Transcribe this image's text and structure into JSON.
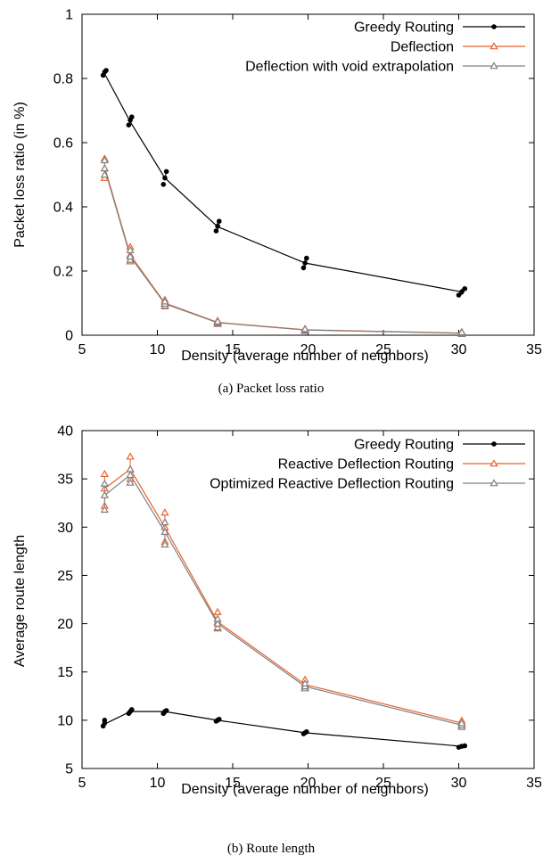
{
  "chart_data": [
    {
      "type": "line",
      "caption": "(a) Packet loss ratio",
      "xlabel": "Density (average number of neighbors)",
      "ylabel": "Packet loss ratio (in %)",
      "xlim": [
        5,
        35
      ],
      "ylim": [
        0,
        1
      ],
      "xticks": [
        "5",
        "10",
        "15",
        "20",
        "25",
        "30",
        "35"
      ],
      "yticks": [
        "0",
        "0.2",
        "0.4",
        "0.6",
        "0.8",
        "1"
      ],
      "legend_position": "top-right",
      "series": [
        {
          "name": "Greedy Routing",
          "color": "#000000",
          "marker": "circle",
          "x": [
            6.5,
            8.2,
            10.5,
            14.0,
            19.8,
            30.2
          ],
          "y": [
            0.815,
            0.665,
            0.49,
            0.338,
            0.225,
            0.135
          ],
          "samples": [
            [
              6.4,
              0.81
            ],
            [
              6.5,
              0.82
            ],
            [
              6.6,
              0.825
            ],
            [
              8.1,
              0.655
            ],
            [
              8.2,
              0.67
            ],
            [
              8.3,
              0.68
            ],
            [
              10.4,
              0.47
            ],
            [
              10.5,
              0.49
            ],
            [
              10.6,
              0.51
            ],
            [
              13.9,
              0.325
            ],
            [
              14.0,
              0.34
            ],
            [
              14.1,
              0.355
            ],
            [
              19.7,
              0.21
            ],
            [
              19.8,
              0.225
            ],
            [
              19.9,
              0.24
            ],
            [
              30.0,
              0.125
            ],
            [
              30.2,
              0.135
            ],
            [
              30.4,
              0.145
            ]
          ]
        },
        {
          "name": "Deflection",
          "color": "#e8622a",
          "marker": "triangle",
          "x": [
            6.5,
            8.2,
            10.5,
            14.0,
            19.8,
            30.2
          ],
          "y": [
            0.525,
            0.25,
            0.1,
            0.04,
            0.017,
            0.007
          ],
          "samples": [
            [
              6.5,
              0.49
            ],
            [
              6.5,
              0.52
            ],
            [
              6.5,
              0.55
            ],
            [
              8.2,
              0.23
            ],
            [
              8.2,
              0.25
            ],
            [
              8.2,
              0.275
            ],
            [
              10.5,
              0.09
            ],
            [
              10.5,
              0.1
            ],
            [
              10.5,
              0.11
            ],
            [
              14.0,
              0.035
            ],
            [
              14.0,
              0.04
            ],
            [
              14.0,
              0.045
            ],
            [
              19.8,
              0.013
            ],
            [
              19.8,
              0.017
            ],
            [
              19.8,
              0.02
            ],
            [
              30.2,
              0.004
            ],
            [
              30.2,
              0.007
            ],
            [
              30.2,
              0.01
            ]
          ]
        },
        {
          "name": "Deflection with void extrapolation",
          "color": "#808080",
          "marker": "triangle",
          "x": [
            6.5,
            8.2,
            10.5,
            14.0,
            19.8,
            30.2
          ],
          "y": [
            0.52,
            0.245,
            0.098,
            0.039,
            0.016,
            0.006
          ],
          "samples": [
            [
              6.5,
              0.5
            ],
            [
              6.5,
              0.52
            ],
            [
              6.5,
              0.545
            ],
            [
              8.2,
              0.235
            ],
            [
              8.2,
              0.245
            ],
            [
              8.2,
              0.265
            ],
            [
              10.5,
              0.092
            ],
            [
              10.5,
              0.098
            ],
            [
              10.5,
              0.105
            ],
            [
              14.0,
              0.036
            ],
            [
              14.0,
              0.039
            ],
            [
              14.0,
              0.043
            ],
            [
              19.8,
              0.014
            ],
            [
              19.8,
              0.016
            ],
            [
              19.8,
              0.019
            ],
            [
              30.2,
              0.004
            ],
            [
              30.2,
              0.006
            ],
            [
              30.2,
              0.009
            ]
          ]
        }
      ]
    },
    {
      "type": "line",
      "caption": "(b) Route length",
      "xlabel": "Density (average number of neighbors)",
      "ylabel": "Average route length",
      "xlim": [
        5,
        35
      ],
      "ylim": [
        5,
        40
      ],
      "xticks": [
        "5",
        "10",
        "15",
        "20",
        "25",
        "30",
        "35"
      ],
      "yticks": [
        "5",
        "10",
        "15",
        "20",
        "25",
        "30",
        "35",
        "40"
      ],
      "legend_position": "top-right",
      "series": [
        {
          "name": "Greedy Routing",
          "color": "#000000",
          "marker": "circle",
          "x": [
            6.5,
            8.2,
            10.5,
            14.0,
            19.8,
            30.2
          ],
          "y": [
            9.6,
            10.9,
            10.9,
            10.0,
            8.7,
            7.3
          ],
          "samples": [
            [
              6.4,
              9.4
            ],
            [
              6.5,
              9.7
            ],
            [
              6.5,
              10.0
            ],
            [
              8.1,
              10.7
            ],
            [
              8.2,
              10.9
            ],
            [
              8.3,
              11.1
            ],
            [
              10.4,
              10.7
            ],
            [
              10.5,
              10.9
            ],
            [
              10.6,
              11.0
            ],
            [
              13.9,
              9.9
            ],
            [
              14.0,
              10.0
            ],
            [
              14.1,
              10.1
            ],
            [
              19.7,
              8.6
            ],
            [
              19.8,
              8.7
            ],
            [
              19.9,
              8.8
            ],
            [
              30.0,
              7.2
            ],
            [
              30.2,
              7.3
            ],
            [
              30.4,
              7.35
            ]
          ]
        },
        {
          "name": "Reactive Deflection Routing",
          "color": "#e8622a",
          "marker": "triangle",
          "x": [
            6.5,
            8.2,
            10.5,
            14.0,
            19.8,
            30.2
          ],
          "y": [
            34.0,
            36.0,
            30.0,
            20.2,
            13.7,
            9.7
          ],
          "samples": [
            [
              6.5,
              32.2
            ],
            [
              6.5,
              34.0
            ],
            [
              6.5,
              35.5
            ],
            [
              8.2,
              35.0
            ],
            [
              8.2,
              36.0
            ],
            [
              8.2,
              37.3
            ],
            [
              10.5,
              28.5
            ],
            [
              10.5,
              30.0
            ],
            [
              10.5,
              31.5
            ],
            [
              14.0,
              19.5
            ],
            [
              14.0,
              20.2
            ],
            [
              14.0,
              21.2
            ],
            [
              19.8,
              13.4
            ],
            [
              19.8,
              13.7
            ],
            [
              19.8,
              14.2
            ],
            [
              30.2,
              9.5
            ],
            [
              30.2,
              9.7
            ],
            [
              30.2,
              9.95
            ]
          ]
        },
        {
          "name": "Optimized Reactive Deflection Routing",
          "color": "#808080",
          "marker": "triangle",
          "x": [
            6.5,
            8.2,
            10.5,
            14.0,
            19.8,
            30.2
          ],
          "y": [
            33.3,
            35.4,
            29.5,
            20.0,
            13.5,
            9.5
          ],
          "samples": [
            [
              6.5,
              31.8
            ],
            [
              6.5,
              33.3
            ],
            [
              6.5,
              34.5
            ],
            [
              8.2,
              34.6
            ],
            [
              8.2,
              35.4
            ],
            [
              8.2,
              36.0
            ],
            [
              10.5,
              28.2
            ],
            [
              10.5,
              29.5
            ],
            [
              10.5,
              30.5
            ],
            [
              14.0,
              19.6
            ],
            [
              14.0,
              20.0
            ],
            [
              14.0,
              20.5
            ],
            [
              19.8,
              13.3
            ],
            [
              19.8,
              13.5
            ],
            [
              19.8,
              13.8
            ],
            [
              30.2,
              9.3
            ],
            [
              30.2,
              9.5
            ],
            [
              30.2,
              9.7
            ]
          ]
        }
      ]
    }
  ]
}
